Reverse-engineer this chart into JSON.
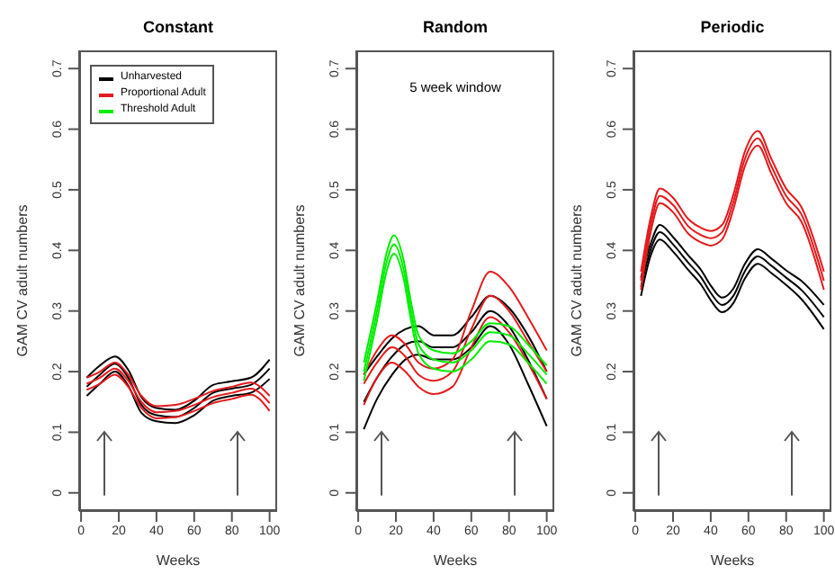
{
  "chart_data": [
    {
      "type": "line",
      "title": "Constant",
      "xlabel": "Weeks",
      "ylabel": "GAM CV adult numbers",
      "xlim": [
        -1,
        104
      ],
      "xticks": [
        0,
        20,
        40,
        60,
        80,
        100
      ],
      "ylim": [
        -0.03,
        0.73
      ],
      "yticks": [
        0,
        0.1,
        0.2,
        0.3,
        0.4,
        0.5,
        0.6,
        0.7
      ],
      "legend": "top left",
      "x": [
        3,
        10,
        18,
        25,
        32,
        40,
        50,
        60,
        70,
        80,
        90,
        100
      ],
      "series": [
        {
          "name": "Unharvested",
          "color": "#000000",
          "values": [
            0.175,
            0.195,
            0.213,
            0.19,
            0.145,
            0.128,
            0.125,
            0.14,
            0.165,
            0.172,
            0.178,
            0.205
          ]
        },
        {
          "color": "#000000",
          "values": [
            0.16,
            0.18,
            0.2,
            0.177,
            0.132,
            0.118,
            0.115,
            0.128,
            0.152,
            0.16,
            0.165,
            0.188
          ]
        },
        {
          "color": "#000000",
          "values": [
            0.19,
            0.21,
            0.225,
            0.203,
            0.158,
            0.14,
            0.137,
            0.152,
            0.178,
            0.184,
            0.19,
            0.22
          ]
        },
        {
          "name": "Proportional Adult",
          "color": "#e31a1c",
          "values": [
            0.18,
            0.19,
            0.205,
            0.185,
            0.15,
            0.133,
            0.135,
            0.145,
            0.158,
            0.165,
            0.172,
            0.148
          ]
        },
        {
          "color": "#e31a1c",
          "values": [
            0.17,
            0.18,
            0.195,
            0.175,
            0.14,
            0.123,
            0.125,
            0.135,
            0.148,
            0.155,
            0.162,
            0.135
          ]
        },
        {
          "color": "#e31a1c",
          "values": [
            0.19,
            0.2,
            0.215,
            0.195,
            0.16,
            0.143,
            0.145,
            0.155,
            0.168,
            0.175,
            0.182,
            0.16
          ]
        },
        {
          "name": "Threshold Adult",
          "color": "#00ee00",
          "values": [
            null,
            null,
            null,
            null,
            null,
            null,
            null,
            null,
            null,
            null,
            null,
            null
          ]
        }
      ]
    },
    {
      "type": "line",
      "title": "Random",
      "xlabel": "Weeks",
      "ylabel": "GAM CV adult numbers",
      "xlim": [
        -1,
        104
      ],
      "xticks": [
        0,
        20,
        40,
        60,
        80,
        100
      ],
      "ylim": [
        -0.03,
        0.73
      ],
      "yticks": [
        0,
        0.1,
        0.2,
        0.3,
        0.4,
        0.5,
        0.6,
        0.7
      ],
      "annotations": [
        "5 week window"
      ],
      "x": [
        3,
        10,
        18,
        25,
        32,
        40,
        50,
        60,
        70,
        80,
        90,
        100
      ],
      "series": [
        {
          "color": "#000000",
          "values": [
            0.15,
            0.19,
            0.225,
            0.245,
            0.25,
            0.24,
            0.24,
            0.265,
            0.3,
            0.275,
            0.22,
            0.155
          ]
        },
        {
          "color": "#000000",
          "values": [
            0.105,
            0.155,
            0.195,
            0.22,
            0.228,
            0.22,
            0.22,
            0.24,
            0.275,
            0.245,
            0.18,
            0.11
          ]
        },
        {
          "color": "#000000",
          "values": [
            0.195,
            0.225,
            0.255,
            0.27,
            0.275,
            0.26,
            0.26,
            0.29,
            0.325,
            0.305,
            0.26,
            0.2
          ]
        },
        {
          "color": "#e31a1c",
          "values": [
            0.18,
            0.215,
            0.24,
            0.225,
            0.195,
            0.185,
            0.2,
            0.27,
            0.325,
            0.3,
            0.25,
            0.2
          ]
        },
        {
          "color": "#e31a1c",
          "values": [
            0.145,
            0.19,
            0.215,
            0.2,
            0.175,
            0.163,
            0.175,
            0.24,
            0.29,
            0.265,
            0.215,
            0.155
          ]
        },
        {
          "color": "#e31a1c",
          "values": [
            0.195,
            0.235,
            0.26,
            0.245,
            0.215,
            0.205,
            0.22,
            0.3,
            0.365,
            0.34,
            0.29,
            0.235
          ]
        },
        {
          "color": "#00ee00",
          "x": [
            3,
            10,
            15,
            19,
            24,
            28,
            32,
            40,
            50,
            60,
            70,
            80,
            90,
            100
          ],
          "values": [
            0.2,
            0.3,
            0.38,
            0.41,
            0.37,
            0.3,
            0.245,
            0.22,
            0.215,
            0.235,
            0.265,
            0.26,
            0.23,
            0.195
          ]
        },
        {
          "color": "#00ee00",
          "x": [
            3,
            10,
            15,
            19,
            24,
            28,
            32,
            40,
            50,
            60,
            70,
            80,
            90,
            100
          ],
          "values": [
            0.185,
            0.285,
            0.365,
            0.395,
            0.355,
            0.285,
            0.23,
            0.205,
            0.2,
            0.22,
            0.25,
            0.245,
            0.215,
            0.18
          ]
        },
        {
          "color": "#00ee00",
          "x": [
            3,
            10,
            15,
            19,
            24,
            28,
            32,
            40,
            50,
            60,
            70,
            80,
            90,
            100
          ],
          "values": [
            0.215,
            0.315,
            0.395,
            0.425,
            0.385,
            0.315,
            0.26,
            0.235,
            0.23,
            0.25,
            0.28,
            0.275,
            0.245,
            0.21
          ]
        }
      ]
    },
    {
      "type": "line",
      "title": "Periodic",
      "xlabel": "Weeks",
      "ylabel": "GAM CV adult numbers",
      "xlim": [
        -1,
        104
      ],
      "xticks": [
        0,
        20,
        40,
        60,
        80,
        100
      ],
      "ylim": [
        -0.03,
        0.73
      ],
      "yticks": [
        0,
        0.1,
        0.2,
        0.3,
        0.4,
        0.5,
        0.6,
        0.7
      ],
      "x": [
        3,
        8,
        13,
        20,
        28,
        35,
        40,
        46,
        52,
        58,
        65,
        72,
        80,
        88,
        100
      ],
      "series": [
        {
          "color": "#000000",
          "values": [
            0.34,
            0.4,
            0.43,
            0.41,
            0.38,
            0.355,
            0.33,
            0.31,
            0.325,
            0.365,
            0.39,
            0.375,
            0.355,
            0.335,
            0.29
          ]
        },
        {
          "color": "#000000",
          "values": [
            0.325,
            0.39,
            0.418,
            0.398,
            0.368,
            0.343,
            0.318,
            0.298,
            0.313,
            0.353,
            0.378,
            0.363,
            0.343,
            0.32,
            0.27
          ]
        },
        {
          "color": "#000000",
          "values": [
            0.355,
            0.41,
            0.442,
            0.422,
            0.392,
            0.367,
            0.342,
            0.322,
            0.337,
            0.377,
            0.402,
            0.387,
            0.367,
            0.35,
            0.31
          ]
        },
        {
          "color": "#e31a1c",
          "values": [
            0.35,
            0.44,
            0.49,
            0.475,
            0.44,
            0.425,
            0.42,
            0.43,
            0.48,
            0.55,
            0.585,
            0.54,
            0.49,
            0.46,
            0.35
          ]
        },
        {
          "color": "#e31a1c",
          "values": [
            0.335,
            0.428,
            0.478,
            0.463,
            0.428,
            0.413,
            0.408,
            0.418,
            0.468,
            0.538,
            0.573,
            0.528,
            0.478,
            0.448,
            0.335
          ]
        },
        {
          "color": "#e31a1c",
          "values": [
            0.365,
            0.452,
            0.502,
            0.487,
            0.452,
            0.437,
            0.432,
            0.442,
            0.492,
            0.562,
            0.597,
            0.552,
            0.502,
            0.472,
            0.365
          ]
        }
      ]
    }
  ]
}
